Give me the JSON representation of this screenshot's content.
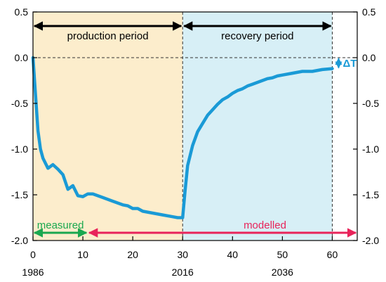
{
  "chart_data": {
    "type": "line",
    "xlim": [
      0,
      65
    ],
    "ylim": [
      -2.0,
      0.5
    ],
    "x_ticks": [
      0,
      10,
      20,
      30,
      40,
      50,
      60
    ],
    "y_ticks": [
      0.5,
      0.0,
      -0.5,
      -1.0,
      -1.5,
      -2.0
    ],
    "y_tick_labels": [
      "0.5",
      "0.0",
      "-0.5",
      "-1.0",
      "-1.5",
      "-2.0"
    ],
    "year_labels": [
      {
        "x": 0,
        "label": "1986"
      },
      {
        "x": 30,
        "label": "2016"
      },
      {
        "x": 50,
        "label": "2036"
      }
    ],
    "series": [
      {
        "x": [
          0,
          0.5,
          1,
          1.5,
          2,
          3,
          4,
          5,
          6,
          7,
          8,
          9,
          10,
          11,
          12,
          14,
          16,
          18,
          19,
          20,
          21,
          22,
          24,
          26,
          28,
          29,
          30,
          30.5,
          31,
          32,
          33,
          34,
          35,
          36,
          37,
          38,
          39,
          40,
          41,
          42,
          43,
          44,
          45,
          46,
          47,
          48,
          49,
          50,
          52,
          54,
          56,
          58,
          60
        ],
        "y": [
          0.0,
          -0.4,
          -0.8,
          -1.0,
          -1.1,
          -1.21,
          -1.17,
          -1.22,
          -1.28,
          -1.44,
          -1.4,
          -1.51,
          -1.52,
          -1.49,
          -1.49,
          -1.53,
          -1.57,
          -1.61,
          -1.62,
          -1.65,
          -1.65,
          -1.68,
          -1.7,
          -1.72,
          -1.74,
          -1.75,
          -1.75,
          -1.45,
          -1.18,
          -0.96,
          -0.81,
          -0.72,
          -0.63,
          -0.57,
          -0.51,
          -0.46,
          -0.43,
          -0.39,
          -0.36,
          -0.34,
          -0.31,
          -0.29,
          -0.27,
          -0.25,
          -0.23,
          -0.22,
          -0.2,
          -0.19,
          -0.17,
          -0.15,
          -0.15,
          -0.13,
          -0.12
        ],
        "color": "#1a9ad6"
      }
    ],
    "periods": [
      {
        "label": "production period",
        "x_start": 0,
        "x_end": 30,
        "color": "#fcedcc"
      },
      {
        "label": "recovery period",
        "x_start": 30,
        "x_end": 60,
        "color": "#d7eff6"
      }
    ],
    "annotations": {
      "delta_label": "ΔT",
      "measured_label": "measured",
      "measured_color": "#1aa84f",
      "measured_range": [
        0,
        11
      ],
      "modelled_label": "modelled",
      "modelled_color": "#e8245a",
      "modelled_range": [
        11,
        65
      ]
    },
    "grid": false,
    "reference_line_y": 0.0
  }
}
